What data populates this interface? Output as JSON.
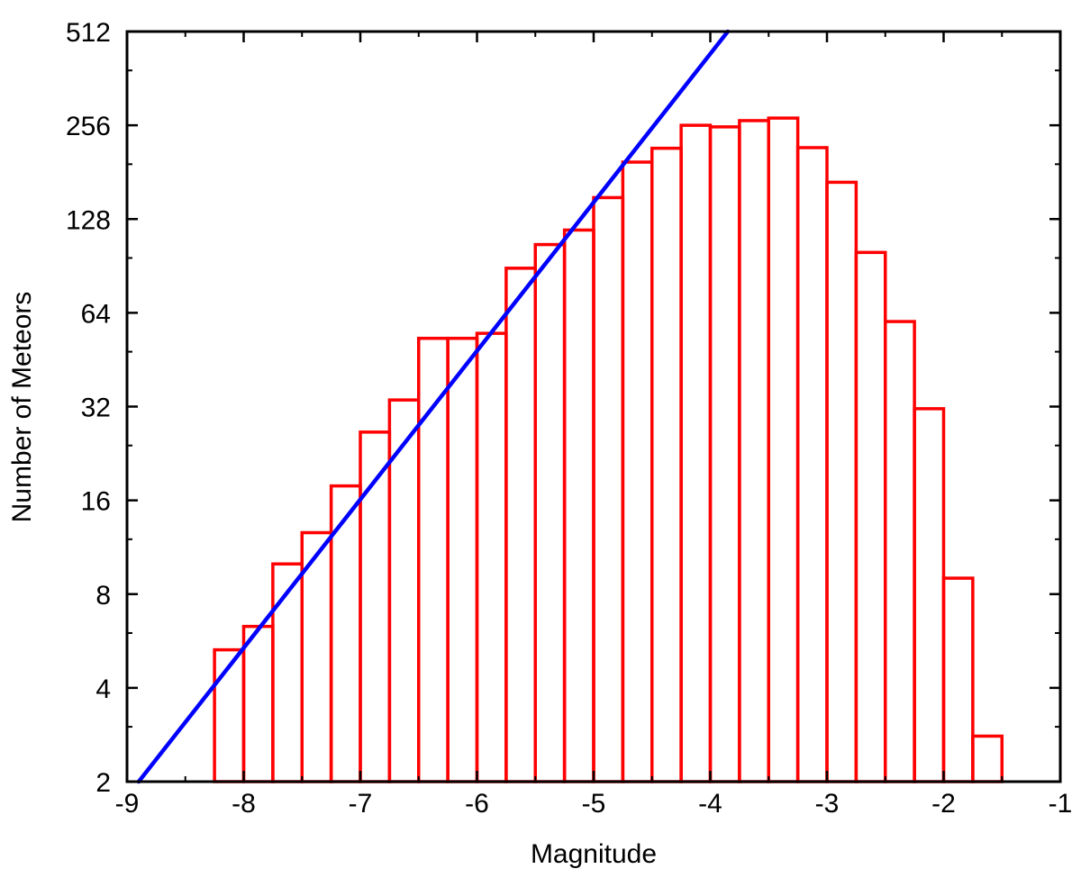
{
  "chart_data": {
    "type": "bar",
    "title": "",
    "xlabel": "Magnitude",
    "ylabel": "Number of Meteors",
    "xlim": [
      -9,
      -1
    ],
    "ylim": [
      2,
      512
    ],
    "y_scale": "log2",
    "grid": false,
    "x_ticks": [
      "-9",
      "-8",
      "-7",
      "-6",
      "-5",
      "-4",
      "-3",
      "-2",
      "-1"
    ],
    "y_ticks": [
      "2",
      "4",
      "8",
      "16",
      "32",
      "64",
      "128",
      "256",
      "512"
    ],
    "bar_width": 0.25,
    "bar_color": "#ff0000",
    "line_color": "#0000ff",
    "bins": [
      {
        "x": -8.25,
        "value": 5.3
      },
      {
        "x": -8.0,
        "value": 6.3
      },
      {
        "x": -7.75,
        "value": 10
      },
      {
        "x": -7.5,
        "value": 12.6
      },
      {
        "x": -7.25,
        "value": 17.8
      },
      {
        "x": -7.0,
        "value": 26.5
      },
      {
        "x": -6.75,
        "value": 33.6
      },
      {
        "x": -6.5,
        "value": 53
      },
      {
        "x": -6.25,
        "value": 53
      },
      {
        "x": -6.0,
        "value": 55
      },
      {
        "x": -5.75,
        "value": 89
      },
      {
        "x": -5.5,
        "value": 106
      },
      {
        "x": -5.25,
        "value": 118
      },
      {
        "x": -5.0,
        "value": 150
      },
      {
        "x": -4.75,
        "value": 195
      },
      {
        "x": -4.5,
        "value": 216
      },
      {
        "x": -4.25,
        "value": 256
      },
      {
        "x": -4.0,
        "value": 253
      },
      {
        "x": -3.75,
        "value": 265
      },
      {
        "x": -3.5,
        "value": 270
      },
      {
        "x": -3.25,
        "value": 217
      },
      {
        "x": -3.0,
        "value": 168
      },
      {
        "x": -2.75,
        "value": 100
      },
      {
        "x": -2.5,
        "value": 60
      },
      {
        "x": -2.25,
        "value": 31.5
      },
      {
        "x": -2.0,
        "value": 9
      },
      {
        "x": -1.75,
        "value": 2.8
      }
    ],
    "fit_line": {
      "x": [
        -8.9,
        -3.85
      ],
      "y": [
        2,
        512
      ]
    }
  }
}
